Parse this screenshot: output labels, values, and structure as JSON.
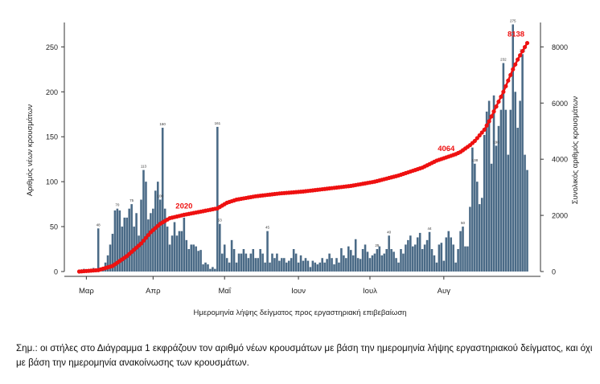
{
  "chart_data": {
    "type": "bar+line",
    "title": "",
    "xlabel": "Ημερομηνία λήψης δείγματος προς εργαστηριακή επιβεβαίωση",
    "ylabel_left": "Αριθμός νέων κρουσμάτων",
    "ylabel_right": "Συνολικός αριθμός κρουσμάτων",
    "ylim_left": [
      0,
      270
    ],
    "ylim_right": [
      0,
      8640
    ],
    "yticks_left": [
      "0",
      "50",
      "100",
      "150",
      "200",
      "250"
    ],
    "yticks_right": [
      "0",
      "2000",
      "4000",
      "6000",
      "8000"
    ],
    "xticks": [
      "Μαρ",
      "Απρ",
      "Μαΐ",
      "Ιουν",
      "Ιουλ",
      "Αυγ"
    ],
    "colors": {
      "bars": "#4a6a86",
      "cumulative": "#ee1111",
      "axis": "#333333"
    },
    "series": [
      {
        "name": "",
        "kind": "bar",
        "values": [
          1,
          2,
          3,
          1,
          2,
          2,
          4,
          3,
          48,
          3,
          5,
          10,
          18,
          30,
          42,
          68,
          70,
          68,
          50,
          60,
          60,
          70,
          75,
          50,
          65,
          40,
          80,
          113,
          100,
          58,
          65,
          70,
          90,
          100,
          80,
          160,
          70,
          50,
          30,
          40,
          55,
          40,
          45,
          45,
          60,
          35,
          25,
          30,
          30,
          28,
          23,
          24,
          8,
          10,
          8,
          3,
          5,
          3,
          161,
          53,
          20,
          30,
          15,
          10,
          35,
          25,
          10,
          20,
          20,
          25,
          20,
          15,
          20,
          25,
          15,
          15,
          25,
          20,
          10,
          45,
          10,
          20,
          15,
          20,
          12,
          15,
          15,
          10,
          12,
          15,
          25,
          20,
          10,
          18,
          12,
          15,
          12,
          5,
          12,
          10,
          8,
          10,
          15,
          10,
          14,
          20,
          15,
          8,
          15,
          10,
          26,
          18,
          15,
          28,
          24,
          18,
          36,
          15,
          14,
          25,
          30,
          22,
          15,
          18,
          20,
          25,
          28,
          18,
          20,
          25,
          40,
          25,
          22,
          15,
          10,
          25,
          20,
          30,
          35,
          40,
          28,
          30,
          38,
          43,
          25,
          30,
          35,
          44,
          25,
          18,
          10,
          30,
          32,
          12,
          38,
          45,
          38,
          30,
          10,
          25,
          45,
          50,
          28,
          28,
          72,
          138,
          120,
          100,
          75,
          82,
          152,
          178,
          190,
          120,
          196,
          140,
          162,
          180,
          232,
          180,
          130,
          180,
          275,
          200,
          160,
          190,
          242,
          130,
          113
        ],
        "data_labels": [
          {
            "x": 8,
            "text": "48"
          },
          {
            "x": 16,
            "text": "70"
          },
          {
            "x": 22,
            "text": "75"
          },
          {
            "x": 27,
            "text": "113"
          },
          {
            "x": 34,
            "text": "100"
          },
          {
            "x": 35,
            "text": "160"
          },
          {
            "x": 58,
            "text": "161"
          },
          {
            "x": 59,
            "text": "53"
          },
          {
            "x": 79,
            "text": "45"
          },
          {
            "x": 125,
            "text": "25"
          },
          {
            "x": 130,
            "text": "40"
          },
          {
            "x": 147,
            "text": "44"
          },
          {
            "x": 161,
            "text": "50"
          },
          {
            "x": 166,
            "text": "138"
          },
          {
            "x": 175,
            "text": "196"
          },
          {
            "x": 178,
            "text": "232"
          },
          {
            "x": 182,
            "text": "275"
          },
          {
            "x": 186,
            "text": "242"
          }
        ]
      },
      {
        "name": "",
        "kind": "line",
        "axis": "right",
        "x": [
          0,
          8,
          14,
          20,
          26,
          30,
          34,
          38,
          44,
          52,
          58,
          62,
          66,
          74,
          84,
          94,
          104,
          114,
          124,
          134,
          144,
          150,
          154,
          158,
          160,
          162,
          164,
          166,
          168,
          170,
          172,
          174,
          176,
          178,
          180,
          182,
          184,
          186,
          188
        ],
        "values": [
          0,
          50,
          200,
          550,
          1000,
          1400,
          1700,
          1900,
          2020,
          2150,
          2250,
          2450,
          2560,
          2680,
          2780,
          2850,
          2950,
          3050,
          3200,
          3420,
          3700,
          3950,
          4064,
          4180,
          4260,
          4380,
          4500,
          4650,
          4850,
          5050,
          5350,
          5700,
          6050,
          6400,
          6800,
          7200,
          7550,
          7850,
          8138
        ]
      }
    ],
    "annotations": [
      {
        "x": 44,
        "series": "line",
        "text": "2020"
      },
      {
        "x": 154,
        "series": "line",
        "text": "4064"
      },
      {
        "x": 188,
        "series": "line",
        "text": "8138"
      }
    ]
  },
  "note": "Σημ.: οι στήλες στο Διάγραμμα 1 εκφράζουν τον αριθμό νέων κρουσμάτων με βάση την ημερομηνία λήψης εργαστηριακού δείγματος, και όχι με βάση την ημερομηνία ανακοίνωσης των κρουσμάτων."
}
